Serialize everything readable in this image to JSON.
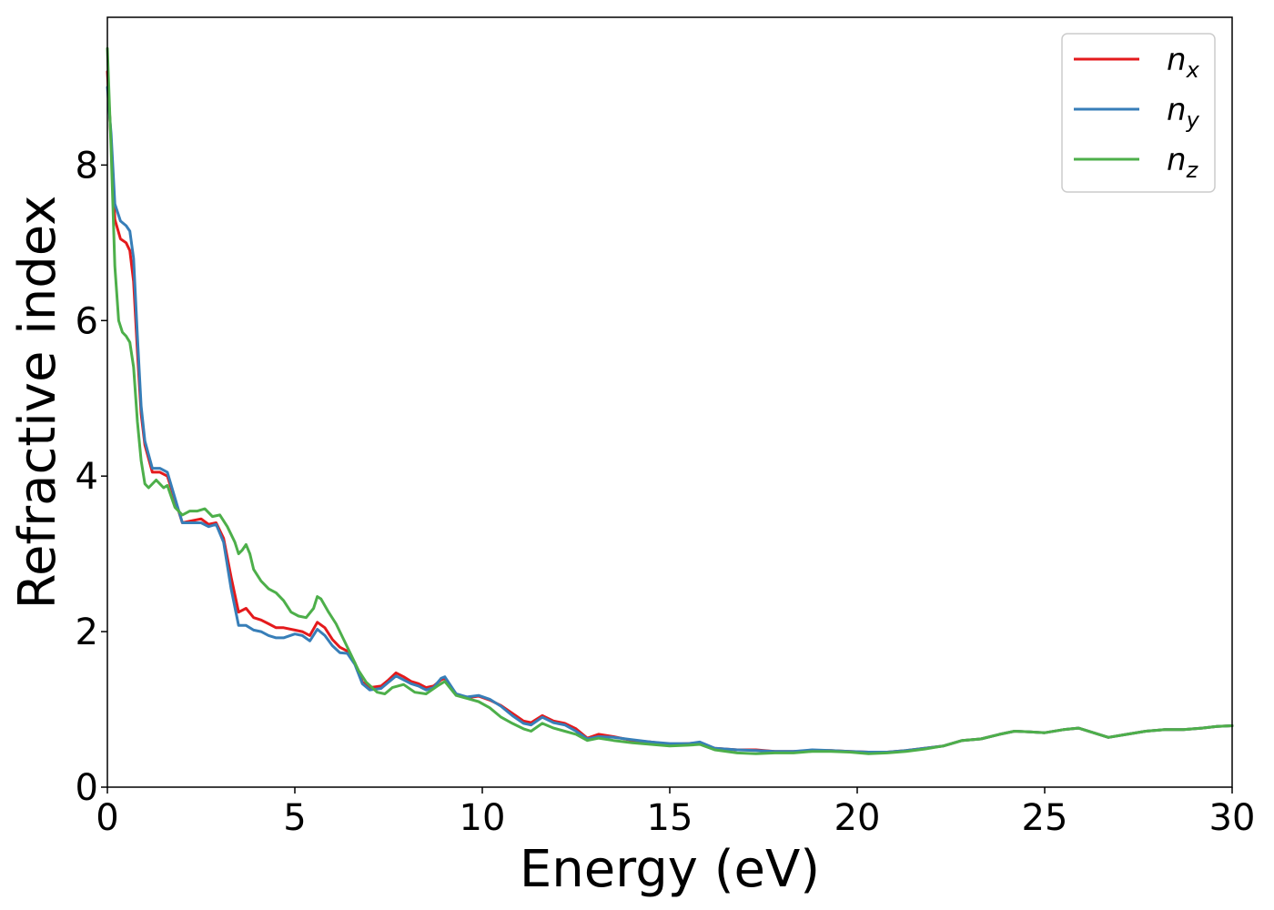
{
  "chart_data": {
    "type": "line",
    "xlabel": "Energy (eV)",
    "ylabel": "Refractive index",
    "xlim": [
      0,
      30
    ],
    "ylim": [
      0,
      9.9
    ],
    "xticks": [
      0,
      5,
      10,
      15,
      20,
      25,
      30
    ],
    "yticks": [
      0,
      2,
      4,
      6,
      8
    ],
    "grid": false,
    "legend_position": "top-right",
    "series": [
      {
        "name": "n_x",
        "label_base": "n",
        "label_sub": "x",
        "color": "#e41a1c",
        "points": [
          [
            0,
            9.2
          ],
          [
            0.1,
            8.3
          ],
          [
            0.2,
            7.3
          ],
          [
            0.35,
            7.05
          ],
          [
            0.5,
            7.0
          ],
          [
            0.6,
            6.9
          ],
          [
            0.7,
            6.5
          ],
          [
            0.8,
            5.6
          ],
          [
            0.9,
            4.8
          ],
          [
            1.0,
            4.4
          ],
          [
            1.2,
            4.05
          ],
          [
            1.4,
            4.05
          ],
          [
            1.6,
            4.0
          ],
          [
            1.8,
            3.7
          ],
          [
            2.0,
            3.4
          ],
          [
            2.2,
            3.42
          ],
          [
            2.5,
            3.45
          ],
          [
            2.7,
            3.38
          ],
          [
            2.9,
            3.4
          ],
          [
            3.1,
            3.2
          ],
          [
            3.3,
            2.7
          ],
          [
            3.5,
            2.25
          ],
          [
            3.7,
            2.3
          ],
          [
            3.9,
            2.18
          ],
          [
            4.1,
            2.15
          ],
          [
            4.3,
            2.1
          ],
          [
            4.5,
            2.05
          ],
          [
            4.7,
            2.05
          ],
          [
            5.0,
            2.02
          ],
          [
            5.2,
            2.0
          ],
          [
            5.4,
            1.95
          ],
          [
            5.6,
            2.12
          ],
          [
            5.8,
            2.05
          ],
          [
            6.0,
            1.9
          ],
          [
            6.2,
            1.8
          ],
          [
            6.4,
            1.75
          ],
          [
            6.6,
            1.6
          ],
          [
            6.8,
            1.35
          ],
          [
            7.0,
            1.28
          ],
          [
            7.3,
            1.3
          ],
          [
            7.5,
            1.38
          ],
          [
            7.7,
            1.47
          ],
          [
            7.9,
            1.42
          ],
          [
            8.1,
            1.36
          ],
          [
            8.3,
            1.33
          ],
          [
            8.5,
            1.28
          ],
          [
            8.7,
            1.3
          ],
          [
            8.9,
            1.38
          ],
          [
            9.0,
            1.4
          ],
          [
            9.3,
            1.2
          ],
          [
            9.6,
            1.15
          ],
          [
            9.9,
            1.17
          ],
          [
            10.2,
            1.12
          ],
          [
            10.5,
            1.05
          ],
          [
            10.8,
            0.95
          ],
          [
            11.1,
            0.85
          ],
          [
            11.3,
            0.83
          ],
          [
            11.6,
            0.92
          ],
          [
            11.9,
            0.85
          ],
          [
            12.2,
            0.82
          ],
          [
            12.5,
            0.75
          ],
          [
            12.8,
            0.63
          ],
          [
            13.1,
            0.68
          ],
          [
            13.5,
            0.65
          ],
          [
            14.0,
            0.6
          ],
          [
            14.5,
            0.58
          ],
          [
            15.0,
            0.55
          ],
          [
            15.5,
            0.56
          ],
          [
            15.8,
            0.57
          ],
          [
            16.2,
            0.5
          ],
          [
            16.8,
            0.48
          ],
          [
            17.3,
            0.48
          ],
          [
            17.8,
            0.46
          ],
          [
            18.3,
            0.46
          ],
          [
            18.8,
            0.47
          ],
          [
            19.3,
            0.47
          ],
          [
            19.8,
            0.46
          ],
          [
            20.3,
            0.45
          ],
          [
            20.8,
            0.45
          ],
          [
            21.3,
            0.47
          ],
          [
            21.8,
            0.5
          ],
          [
            22.3,
            0.53
          ],
          [
            22.8,
            0.6
          ],
          [
            23.3,
            0.62
          ],
          [
            23.8,
            0.68
          ],
          [
            24.2,
            0.72
          ],
          [
            24.6,
            0.71
          ],
          [
            25.0,
            0.7
          ],
          [
            25.5,
            0.74
          ],
          [
            25.9,
            0.76
          ],
          [
            26.3,
            0.7
          ],
          [
            26.7,
            0.64
          ],
          [
            27.2,
            0.68
          ],
          [
            27.7,
            0.72
          ],
          [
            28.2,
            0.74
          ],
          [
            28.7,
            0.74
          ],
          [
            29.2,
            0.76
          ],
          [
            29.6,
            0.78
          ],
          [
            30.0,
            0.79
          ]
        ]
      },
      {
        "name": "n_y",
        "label_base": "n",
        "label_sub": "y",
        "color": "#377eb8",
        "points": [
          [
            0,
            9.0
          ],
          [
            0.1,
            8.4
          ],
          [
            0.2,
            7.5
          ],
          [
            0.35,
            7.28
          ],
          [
            0.5,
            7.22
          ],
          [
            0.6,
            7.15
          ],
          [
            0.7,
            6.8
          ],
          [
            0.8,
            5.8
          ],
          [
            0.9,
            4.9
          ],
          [
            1.0,
            4.45
          ],
          [
            1.2,
            4.1
          ],
          [
            1.4,
            4.1
          ],
          [
            1.6,
            4.05
          ],
          [
            1.8,
            3.72
          ],
          [
            2.0,
            3.4
          ],
          [
            2.2,
            3.4
          ],
          [
            2.5,
            3.4
          ],
          [
            2.7,
            3.35
          ],
          [
            2.9,
            3.38
          ],
          [
            3.1,
            3.15
          ],
          [
            3.3,
            2.55
          ],
          [
            3.5,
            2.08
          ],
          [
            3.7,
            2.08
          ],
          [
            3.9,
            2.02
          ],
          [
            4.1,
            2.0
          ],
          [
            4.3,
            1.95
          ],
          [
            4.5,
            1.92
          ],
          [
            4.7,
            1.92
          ],
          [
            5.0,
            1.97
          ],
          [
            5.2,
            1.95
          ],
          [
            5.4,
            1.88
          ],
          [
            5.6,
            2.03
          ],
          [
            5.8,
            1.95
          ],
          [
            6.0,
            1.82
          ],
          [
            6.2,
            1.73
          ],
          [
            6.4,
            1.72
          ],
          [
            6.6,
            1.58
          ],
          [
            6.8,
            1.33
          ],
          [
            7.0,
            1.25
          ],
          [
            7.3,
            1.27
          ],
          [
            7.5,
            1.35
          ],
          [
            7.7,
            1.43
          ],
          [
            7.9,
            1.38
          ],
          [
            8.1,
            1.33
          ],
          [
            8.3,
            1.3
          ],
          [
            8.5,
            1.25
          ],
          [
            8.7,
            1.28
          ],
          [
            8.9,
            1.4
          ],
          [
            9.0,
            1.42
          ],
          [
            9.3,
            1.2
          ],
          [
            9.6,
            1.16
          ],
          [
            9.9,
            1.18
          ],
          [
            10.2,
            1.13
          ],
          [
            10.5,
            1.04
          ],
          [
            10.8,
            0.92
          ],
          [
            11.1,
            0.82
          ],
          [
            11.3,
            0.8
          ],
          [
            11.6,
            0.9
          ],
          [
            11.9,
            0.83
          ],
          [
            12.2,
            0.8
          ],
          [
            12.5,
            0.72
          ],
          [
            12.8,
            0.62
          ],
          [
            13.1,
            0.65
          ],
          [
            13.5,
            0.64
          ],
          [
            14.0,
            0.61
          ],
          [
            14.5,
            0.58
          ],
          [
            15.0,
            0.56
          ],
          [
            15.5,
            0.56
          ],
          [
            15.8,
            0.58
          ],
          [
            16.2,
            0.5
          ],
          [
            16.8,
            0.48
          ],
          [
            17.3,
            0.47
          ],
          [
            17.8,
            0.46
          ],
          [
            18.3,
            0.46
          ],
          [
            18.8,
            0.48
          ],
          [
            19.3,
            0.47
          ],
          [
            19.8,
            0.46
          ],
          [
            20.3,
            0.45
          ],
          [
            20.8,
            0.45
          ],
          [
            21.3,
            0.47
          ],
          [
            21.8,
            0.5
          ],
          [
            22.3,
            0.53
          ],
          [
            22.8,
            0.6
          ],
          [
            23.3,
            0.62
          ],
          [
            23.8,
            0.68
          ],
          [
            24.2,
            0.72
          ],
          [
            24.6,
            0.71
          ],
          [
            25.0,
            0.7
          ],
          [
            25.5,
            0.74
          ],
          [
            25.9,
            0.76
          ],
          [
            26.3,
            0.7
          ],
          [
            26.7,
            0.64
          ],
          [
            27.2,
            0.68
          ],
          [
            27.7,
            0.72
          ],
          [
            28.2,
            0.74
          ],
          [
            28.7,
            0.74
          ],
          [
            29.2,
            0.76
          ],
          [
            29.6,
            0.78
          ],
          [
            30.0,
            0.79
          ]
        ]
      },
      {
        "name": "n_z",
        "label_base": "n",
        "label_sub": "z",
        "color": "#4daf4a",
        "points": [
          [
            0,
            9.5
          ],
          [
            0.1,
            8.2
          ],
          [
            0.2,
            6.7
          ],
          [
            0.3,
            6.0
          ],
          [
            0.4,
            5.85
          ],
          [
            0.5,
            5.8
          ],
          [
            0.6,
            5.72
          ],
          [
            0.7,
            5.4
          ],
          [
            0.8,
            4.7
          ],
          [
            0.9,
            4.2
          ],
          [
            1.0,
            3.9
          ],
          [
            1.1,
            3.85
          ],
          [
            1.3,
            3.95
          ],
          [
            1.5,
            3.85
          ],
          [
            1.6,
            3.88
          ],
          [
            1.8,
            3.6
          ],
          [
            2.0,
            3.5
          ],
          [
            2.2,
            3.55
          ],
          [
            2.4,
            3.55
          ],
          [
            2.6,
            3.58
          ],
          [
            2.8,
            3.48
          ],
          [
            3.0,
            3.5
          ],
          [
            3.2,
            3.35
          ],
          [
            3.4,
            3.15
          ],
          [
            3.5,
            3.0
          ],
          [
            3.6,
            3.05
          ],
          [
            3.7,
            3.12
          ],
          [
            3.8,
            3.0
          ],
          [
            3.9,
            2.8
          ],
          [
            4.1,
            2.65
          ],
          [
            4.3,
            2.55
          ],
          [
            4.5,
            2.5
          ],
          [
            4.7,
            2.4
          ],
          [
            4.9,
            2.25
          ],
          [
            5.1,
            2.2
          ],
          [
            5.3,
            2.18
          ],
          [
            5.5,
            2.3
          ],
          [
            5.6,
            2.45
          ],
          [
            5.7,
            2.42
          ],
          [
            5.9,
            2.25
          ],
          [
            6.1,
            2.1
          ],
          [
            6.3,
            1.9
          ],
          [
            6.5,
            1.7
          ],
          [
            6.7,
            1.5
          ],
          [
            6.9,
            1.35
          ],
          [
            7.2,
            1.22
          ],
          [
            7.4,
            1.2
          ],
          [
            7.6,
            1.28
          ],
          [
            7.9,
            1.32
          ],
          [
            8.2,
            1.22
          ],
          [
            8.5,
            1.2
          ],
          [
            8.8,
            1.3
          ],
          [
            9.0,
            1.36
          ],
          [
            9.3,
            1.18
          ],
          [
            9.6,
            1.14
          ],
          [
            9.9,
            1.1
          ],
          [
            10.2,
            1.02
          ],
          [
            10.5,
            0.9
          ],
          [
            10.8,
            0.82
          ],
          [
            11.1,
            0.75
          ],
          [
            11.3,
            0.72
          ],
          [
            11.6,
            0.82
          ],
          [
            11.9,
            0.76
          ],
          [
            12.2,
            0.72
          ],
          [
            12.5,
            0.68
          ],
          [
            12.8,
            0.6
          ],
          [
            13.1,
            0.63
          ],
          [
            13.5,
            0.6
          ],
          [
            14.0,
            0.57
          ],
          [
            14.5,
            0.55
          ],
          [
            15.0,
            0.53
          ],
          [
            15.5,
            0.54
          ],
          [
            15.8,
            0.55
          ],
          [
            16.2,
            0.48
          ],
          [
            16.8,
            0.44
          ],
          [
            17.3,
            0.43
          ],
          [
            17.8,
            0.44
          ],
          [
            18.3,
            0.44
          ],
          [
            18.8,
            0.46
          ],
          [
            19.3,
            0.46
          ],
          [
            19.8,
            0.45
          ],
          [
            20.3,
            0.43
          ],
          [
            20.8,
            0.44
          ],
          [
            21.3,
            0.46
          ],
          [
            21.8,
            0.49
          ],
          [
            22.3,
            0.53
          ],
          [
            22.8,
            0.6
          ],
          [
            23.3,
            0.62
          ],
          [
            23.8,
            0.68
          ],
          [
            24.2,
            0.72
          ],
          [
            24.6,
            0.71
          ],
          [
            25.0,
            0.7
          ],
          [
            25.5,
            0.74
          ],
          [
            25.9,
            0.76
          ],
          [
            26.3,
            0.7
          ],
          [
            26.7,
            0.64
          ],
          [
            27.2,
            0.68
          ],
          [
            27.7,
            0.72
          ],
          [
            28.2,
            0.74
          ],
          [
            28.7,
            0.74
          ],
          [
            29.2,
            0.76
          ],
          [
            29.6,
            0.78
          ],
          [
            30.0,
            0.79
          ]
        ]
      }
    ]
  }
}
